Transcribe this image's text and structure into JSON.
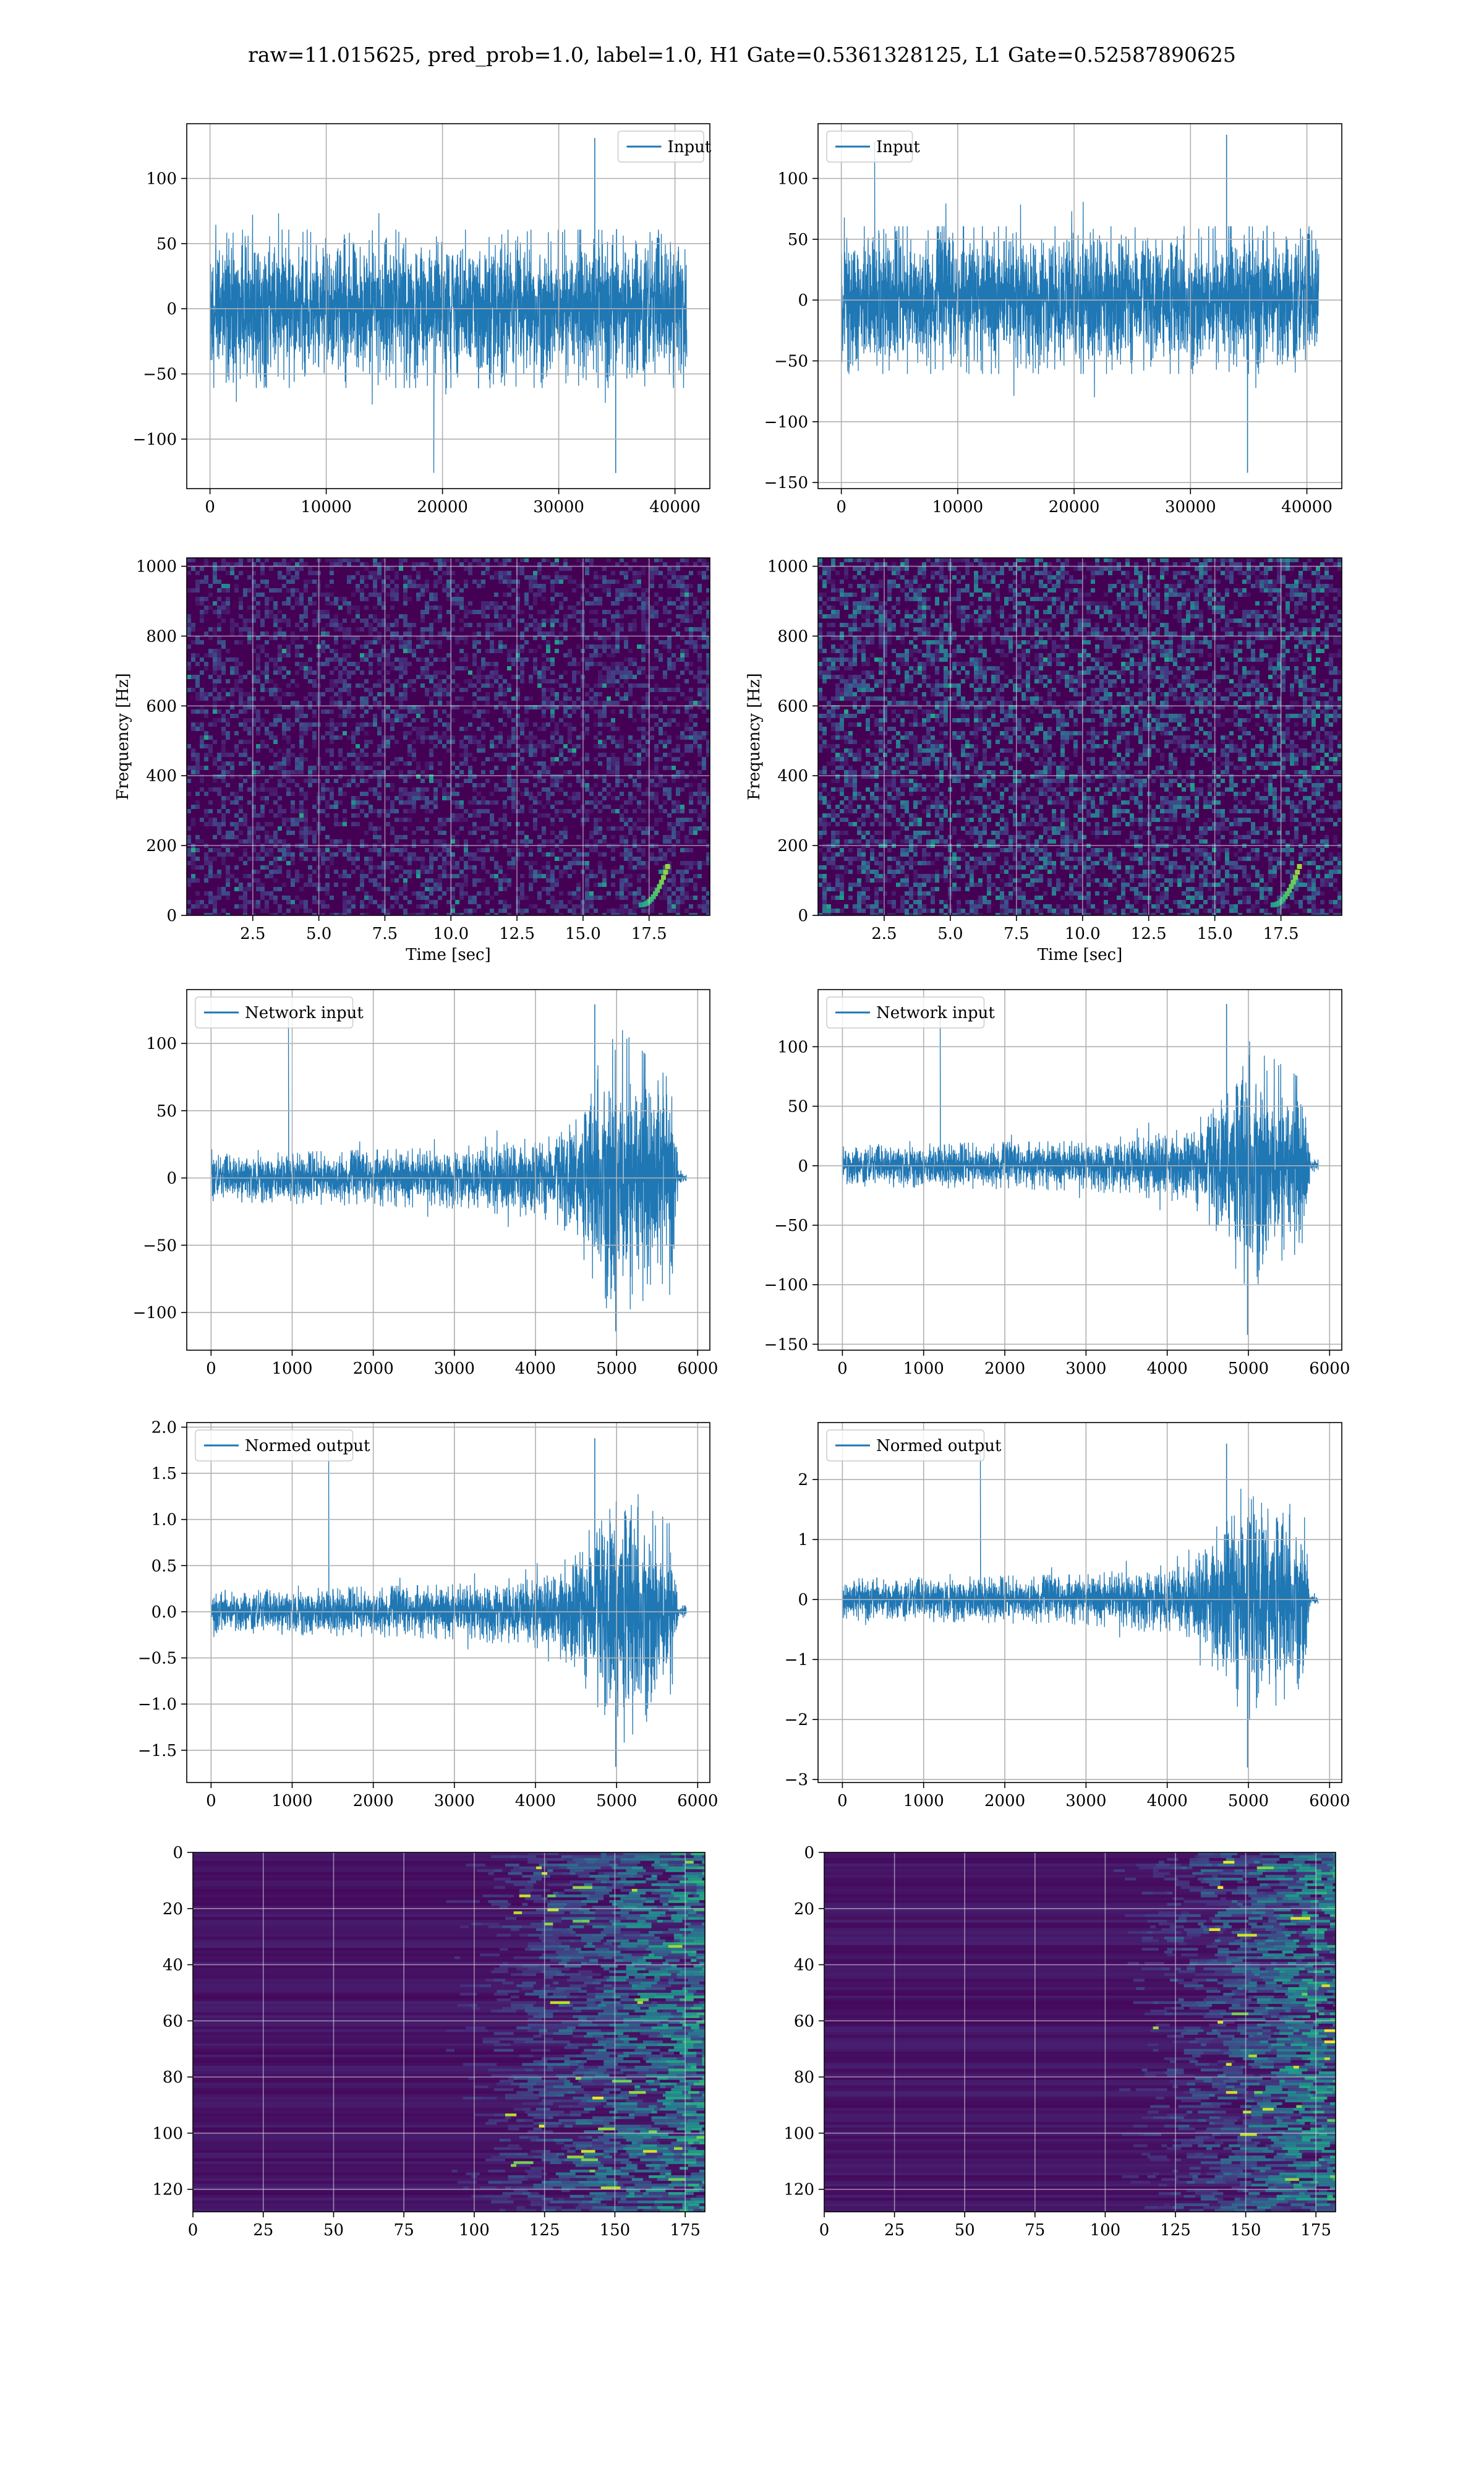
{
  "title": "raw=11.015625, pred_prob=1.0, label=1.0, H1 Gate=0.5361328125, L1 Gate=0.52587890625",
  "colors": {
    "line": "#1f77b4",
    "grid": "#b0b0b0",
    "viridis_low": "#440154",
    "viridis_mid": "#21918c",
    "viridis_high": "#fde725"
  },
  "chart_data": [
    {
      "id": "ax1",
      "type": "line",
      "legend": "Input",
      "legend_loc": "upper right",
      "xlim": [
        -2000,
        43000
      ],
      "ylim": [
        -138,
        142
      ],
      "xticks": [
        0,
        10000,
        20000,
        30000,
        40000
      ],
      "xticklabels": [
        "0",
        "10000",
        "20000",
        "30000",
        "40000"
      ],
      "yticks": [
        -100,
        -50,
        0,
        50,
        100
      ],
      "yticklabels": [
        "−100",
        "−50",
        "0",
        "50",
        "100"
      ],
      "signal": {
        "x_start": 0,
        "x_end": 40960,
        "core_amplitude": 45,
        "spike_max": 131,
        "spike_min": -126,
        "envelope": [
          [
            0,
            1
          ],
          [
            1,
            1
          ]
        ]
      }
    },
    {
      "id": "ax2",
      "type": "line",
      "legend": "Input",
      "legend_loc": "upper left",
      "xlim": [
        -2000,
        43000
      ],
      "ylim": [
        -155,
        145
      ],
      "xticks": [
        0,
        10000,
        20000,
        30000,
        40000
      ],
      "xticklabels": [
        "0",
        "10000",
        "20000",
        "30000",
        "40000"
      ],
      "yticks": [
        -150,
        -100,
        -50,
        0,
        50,
        100
      ],
      "yticklabels": [
        "−150",
        "−100",
        "−50",
        "0",
        "50",
        "100"
      ],
      "signal": {
        "x_start": 0,
        "x_end": 40960,
        "core_amplitude": 45,
        "spike_max": 136,
        "spike_min": -142,
        "envelope": [
          [
            0,
            1
          ],
          [
            1,
            1
          ]
        ]
      }
    },
    {
      "id": "ax3",
      "type": "heatmap",
      "xlabel": "Time [sec]",
      "ylabel": "Frequency [Hz]",
      "xlim": [
        0,
        19.8
      ],
      "ylim": [
        0,
        1024
      ],
      "xticks": [
        2.5,
        5.0,
        7.5,
        10.0,
        12.5,
        15.0,
        17.5
      ],
      "xticklabels": [
        "2.5",
        "5.0",
        "7.5",
        "10.0",
        "12.5",
        "15.0",
        "17.5"
      ],
      "yticks": [
        0,
        200,
        400,
        600,
        800,
        1000
      ],
      "yticklabels": [
        "0",
        "200",
        "400",
        "600",
        "800",
        "1000"
      ],
      "colormap": "viridis",
      "brightness": 0.32
    },
    {
      "id": "ax4",
      "type": "heatmap",
      "xlabel": "Time [sec]",
      "ylabel": "Frequency [Hz]",
      "xlim": [
        0,
        19.8
      ],
      "ylim": [
        0,
        1024
      ],
      "xticks": [
        2.5,
        5.0,
        7.5,
        10.0,
        12.5,
        15.0,
        17.5
      ],
      "xticklabels": [
        "2.5",
        "5.0",
        "7.5",
        "10.0",
        "12.5",
        "15.0",
        "17.5"
      ],
      "yticks": [
        0,
        200,
        400,
        600,
        800,
        1000
      ],
      "yticklabels": [
        "0",
        "200",
        "400",
        "600",
        "800",
        "1000"
      ],
      "colormap": "viridis",
      "brightness": 0.5
    },
    {
      "id": "ax5",
      "type": "line",
      "legend": "Network input",
      "legend_loc": "upper left",
      "xlim": [
        -300,
        6150
      ],
      "ylim": [
        -128,
        140
      ],
      "xticks": [
        0,
        1000,
        2000,
        3000,
        4000,
        5000,
        6000
      ],
      "xticklabels": [
        "0",
        "1000",
        "2000",
        "3000",
        "4000",
        "5000",
        "6000"
      ],
      "yticks": [
        -100,
        -50,
        0,
        50,
        100
      ],
      "yticklabels": [
        "−100",
        "−50",
        "0",
        "50",
        "100"
      ],
      "signal": {
        "x_start": 0,
        "x_end": 5850,
        "core_amplitude": 13,
        "spike_max": 129,
        "spike_min": -114,
        "envelope": [
          [
            0,
            1
          ],
          [
            3000,
            1.3
          ],
          [
            4200,
            1.8
          ],
          [
            4600,
            3.5
          ],
          [
            5000,
            6.5
          ],
          [
            5700,
            4
          ],
          [
            5760,
            0.3
          ],
          [
            5850,
            0.3
          ]
        ]
      }
    },
    {
      "id": "ax6",
      "type": "line",
      "legend": "Network input",
      "legend_loc": "upper left",
      "xlim": [
        -300,
        6150
      ],
      "ylim": [
        -155,
        148
      ],
      "xticks": [
        0,
        1000,
        2000,
        3000,
        4000,
        5000,
        6000
      ],
      "xticklabels": [
        "0",
        "1000",
        "2000",
        "3000",
        "4000",
        "5000",
        "6000"
      ],
      "yticks": [
        -150,
        -100,
        -50,
        0,
        50,
        100
      ],
      "yticklabels": [
        "−150",
        "−100",
        "−50",
        "0",
        "50",
        "100"
      ],
      "signal": {
        "x_start": 0,
        "x_end": 5850,
        "core_amplitude": 13,
        "spike_max": 136,
        "spike_min": -142,
        "envelope": [
          [
            0,
            1
          ],
          [
            3000,
            1.2
          ],
          [
            4300,
            1.8
          ],
          [
            4700,
            4
          ],
          [
            5000,
            6
          ],
          [
            5700,
            4
          ],
          [
            5760,
            0.3
          ],
          [
            5850,
            0.3
          ]
        ]
      }
    },
    {
      "id": "ax7",
      "type": "line",
      "legend": "Normed output",
      "legend_loc": "upper left",
      "xlim": [
        -300,
        6150
      ],
      "ylim": [
        -1.85,
        2.05
      ],
      "xticks": [
        0,
        1000,
        2000,
        3000,
        4000,
        5000,
        6000
      ],
      "xticklabels": [
        "0",
        "1000",
        "2000",
        "3000",
        "4000",
        "5000",
        "6000"
      ],
      "yticks": [
        -1.5,
        -1.0,
        -0.5,
        0.0,
        0.5,
        1.0,
        1.5,
        2.0
      ],
      "yticklabels": [
        "−1.5",
        "−1.0",
        "−0.5",
        "0.0",
        "0.5",
        "1.0",
        "1.5",
        "2.0"
      ],
      "signal": {
        "x_start": 0,
        "x_end": 5850,
        "core_amplitude": 0.17,
        "spike_max": 1.88,
        "spike_min": -1.68,
        "envelope": [
          [
            0,
            1
          ],
          [
            3000,
            1.3
          ],
          [
            4200,
            1.8
          ],
          [
            4600,
            3.5
          ],
          [
            5000,
            6.5
          ],
          [
            5700,
            4
          ],
          [
            5760,
            0.3
          ],
          [
            5850,
            0.3
          ]
        ]
      }
    },
    {
      "id": "ax8",
      "type": "line",
      "legend": "Normed output",
      "legend_loc": "upper left",
      "xlim": [
        -300,
        6150
      ],
      "ylim": [
        -3.05,
        2.95
      ],
      "xticks": [
        0,
        1000,
        2000,
        3000,
        4000,
        5000,
        6000
      ],
      "xticklabels": [
        "0",
        "1000",
        "2000",
        "3000",
        "4000",
        "5000",
        "6000"
      ],
      "yticks": [
        -3,
        -2,
        -1,
        0,
        1,
        2
      ],
      "yticklabels": [
        "−3",
        "−2",
        "−1",
        "0",
        "1",
        "2"
      ],
      "signal": {
        "x_start": 0,
        "x_end": 5850,
        "core_amplitude": 0.26,
        "spike_max": 2.6,
        "spike_min": -2.8,
        "envelope": [
          [
            0,
            1
          ],
          [
            3000,
            1.2
          ],
          [
            4300,
            1.8
          ],
          [
            4700,
            4
          ],
          [
            5000,
            6
          ],
          [
            5700,
            4
          ],
          [
            5760,
            0.3
          ],
          [
            5850,
            0.3
          ]
        ]
      }
    },
    {
      "id": "ax9",
      "type": "heatmap",
      "xlim": [
        0,
        182
      ],
      "ylim": [
        128,
        0
      ],
      "xticks": [
        0,
        25,
        50,
        75,
        100,
        125,
        150,
        175
      ],
      "xticklabels": [
        "0",
        "25",
        "50",
        "75",
        "100",
        "125",
        "150",
        "175"
      ],
      "yticks": [
        0,
        20,
        40,
        60,
        80,
        100,
        120
      ],
      "yticklabels": [
        "0",
        "20",
        "40",
        "60",
        "80",
        "100",
        "120"
      ],
      "colormap": "viridis",
      "activation_onset": 105
    },
    {
      "id": "ax10",
      "type": "heatmap",
      "xlim": [
        0,
        182
      ],
      "ylim": [
        128,
        0
      ],
      "xticks": [
        0,
        25,
        50,
        75,
        100,
        125,
        150,
        175
      ],
      "xticklabels": [
        "0",
        "25",
        "50",
        "75",
        "100",
        "125",
        "150",
        "175"
      ],
      "yticks": [
        0,
        20,
        40,
        60,
        80,
        100,
        120
      ],
      "yticklabels": [
        "0",
        "20",
        "40",
        "60",
        "80",
        "100",
        "120"
      ],
      "colormap": "viridis",
      "activation_onset": 115
    }
  ]
}
